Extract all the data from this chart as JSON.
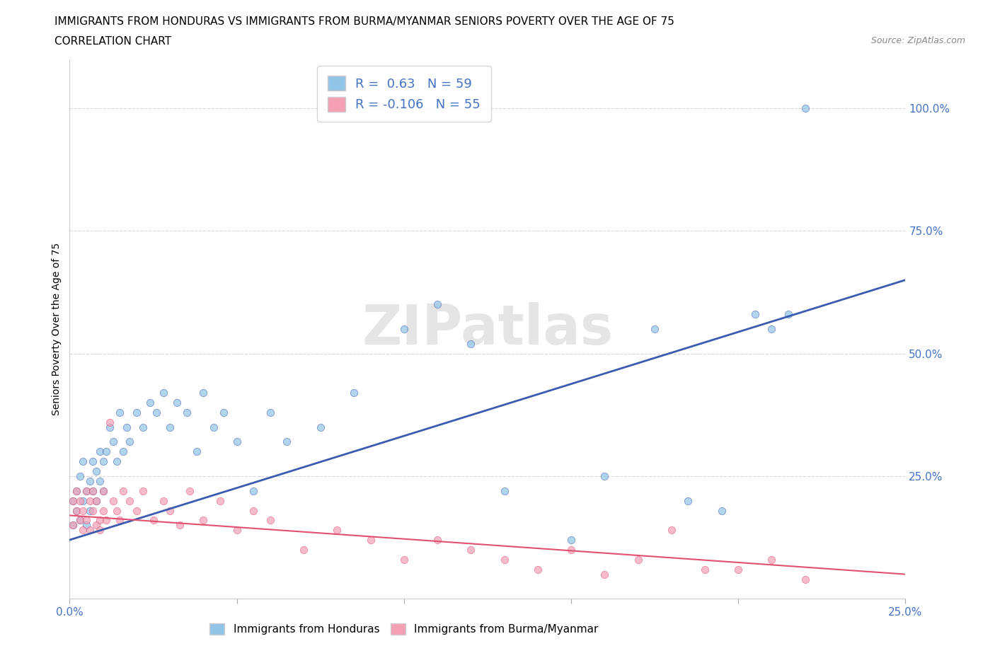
{
  "title_line1": "IMMIGRANTS FROM HONDURAS VS IMMIGRANTS FROM BURMA/MYANMAR SENIORS POVERTY OVER THE AGE OF 75",
  "title_line2": "CORRELATION CHART",
  "source_text": "Source: ZipAtlas.com",
  "ylabel": "Seniors Poverty Over the Age of 75",
  "xlim": [
    0.0,
    0.25
  ],
  "ylim": [
    0.0,
    1.1
  ],
  "R_honduras": 0.63,
  "N_honduras": 59,
  "R_burma": -0.106,
  "N_burma": 55,
  "color_honduras": "#92C4E8",
  "color_burma": "#F4A0B5",
  "color_line_honduras": "#3A5BAF",
  "color_line_burma": "#E05070",
  "watermark": "ZIPatlas",
  "honduras_scatter_x": [
    0.001,
    0.001,
    0.002,
    0.002,
    0.003,
    0.003,
    0.004,
    0.004,
    0.005,
    0.005,
    0.006,
    0.006,
    0.007,
    0.007,
    0.008,
    0.008,
    0.009,
    0.009,
    0.01,
    0.01,
    0.011,
    0.012,
    0.013,
    0.014,
    0.015,
    0.016,
    0.017,
    0.018,
    0.02,
    0.022,
    0.024,
    0.026,
    0.028,
    0.03,
    0.032,
    0.035,
    0.038,
    0.04,
    0.043,
    0.046,
    0.05,
    0.055,
    0.06,
    0.065,
    0.075,
    0.085,
    0.1,
    0.11,
    0.12,
    0.13,
    0.15,
    0.16,
    0.175,
    0.185,
    0.195,
    0.205,
    0.21,
    0.215,
    0.22
  ],
  "honduras_scatter_y": [
    0.15,
    0.2,
    0.18,
    0.22,
    0.16,
    0.25,
    0.2,
    0.28,
    0.15,
    0.22,
    0.18,
    0.24,
    0.22,
    0.28,
    0.2,
    0.26,
    0.24,
    0.3,
    0.22,
    0.28,
    0.3,
    0.35,
    0.32,
    0.28,
    0.38,
    0.3,
    0.35,
    0.32,
    0.38,
    0.35,
    0.4,
    0.38,
    0.42,
    0.35,
    0.4,
    0.38,
    0.3,
    0.42,
    0.35,
    0.38,
    0.32,
    0.22,
    0.38,
    0.32,
    0.35,
    0.42,
    0.55,
    0.6,
    0.52,
    0.22,
    0.12,
    0.25,
    0.55,
    0.2,
    0.18,
    0.58,
    0.55,
    0.58,
    1.0
  ],
  "burma_scatter_x": [
    0.001,
    0.001,
    0.002,
    0.002,
    0.003,
    0.003,
    0.004,
    0.004,
    0.005,
    0.005,
    0.006,
    0.006,
    0.007,
    0.007,
    0.008,
    0.008,
    0.009,
    0.009,
    0.01,
    0.01,
    0.011,
    0.012,
    0.013,
    0.014,
    0.015,
    0.016,
    0.018,
    0.02,
    0.022,
    0.025,
    0.028,
    0.03,
    0.033,
    0.036,
    0.04,
    0.045,
    0.05,
    0.055,
    0.06,
    0.07,
    0.08,
    0.09,
    0.1,
    0.11,
    0.12,
    0.13,
    0.14,
    0.15,
    0.16,
    0.17,
    0.18,
    0.19,
    0.2,
    0.21,
    0.22
  ],
  "burma_scatter_y": [
    0.2,
    0.15,
    0.18,
    0.22,
    0.16,
    0.2,
    0.14,
    0.18,
    0.22,
    0.16,
    0.2,
    0.14,
    0.18,
    0.22,
    0.15,
    0.2,
    0.16,
    0.14,
    0.18,
    0.22,
    0.16,
    0.36,
    0.2,
    0.18,
    0.16,
    0.22,
    0.2,
    0.18,
    0.22,
    0.16,
    0.2,
    0.18,
    0.15,
    0.22,
    0.16,
    0.2,
    0.14,
    0.18,
    0.16,
    0.1,
    0.14,
    0.12,
    0.08,
    0.12,
    0.1,
    0.08,
    0.06,
    0.1,
    0.05,
    0.08,
    0.14,
    0.06,
    0.06,
    0.08,
    0.04
  ]
}
